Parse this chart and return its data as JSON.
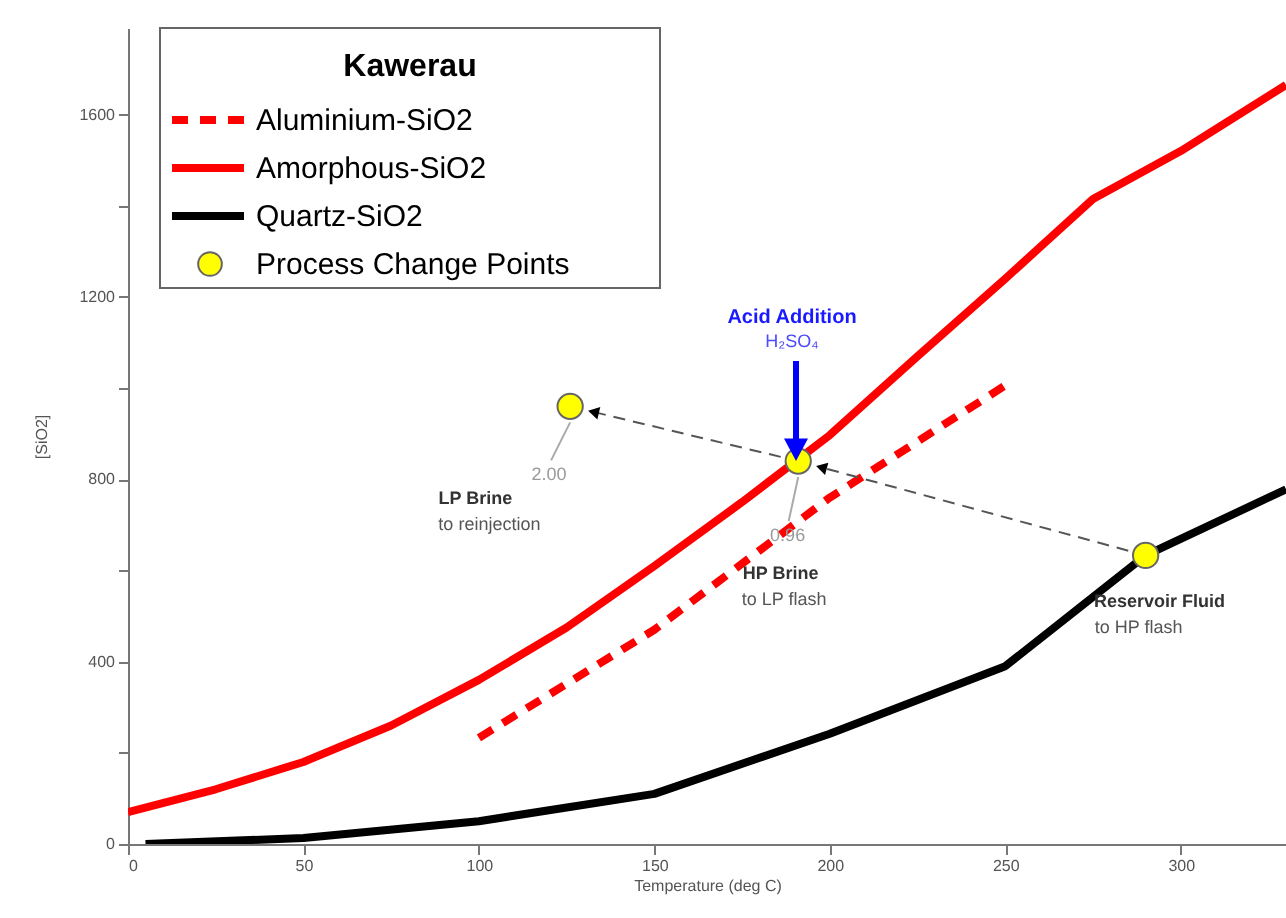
{
  "chart_data": {
    "type": "line",
    "xlabel": "Temperature (deg C)",
    "ylabel": "[SiO2]",
    "legend_title": "Kawerau",
    "legend": "top left",
    "grid": false,
    "xlim": [
      0,
      330
    ],
    "ylim": [
      0,
      1790
    ],
    "xticks": [
      0,
      50,
      100,
      150,
      200,
      250,
      300
    ],
    "yticks": [
      0,
      {
        "value": 200,
        "label": null
      },
      400,
      {
        "value": 600,
        "label": null
      },
      800,
      {
        "value": 1000,
        "label": null
      },
      1200,
      {
        "value": 1400,
        "label": null
      },
      1600
    ],
    "series": [
      {
        "name": "Aluminium-SiO2",
        "color": "#ff0000",
        "line_style": "dashed",
        "x": [
          100,
          150,
          200,
          250
        ],
        "values": [
          233,
          470,
          760,
          1006
        ]
      },
      {
        "name": "Amorphous-SiO2",
        "color": "#ff0000",
        "line_style": "solid",
        "x": [
          0,
          25,
          50,
          75,
          100,
          125,
          150,
          175,
          200,
          225,
          250,
          275,
          300,
          330
        ],
        "values": [
          70,
          120,
          180,
          260,
          360,
          475,
          610,
          750,
          897,
          1070,
          1240,
          1415,
          1520,
          1665
        ]
      },
      {
        "name": "Quartz-SiO2",
        "color": "#000000",
        "line_style": "solid",
        "x": [
          5,
          50,
          100,
          150,
          200,
          250,
          290,
          330
        ],
        "values": [
          0,
          13,
          50,
          110,
          242,
          390,
          633,
          778
        ]
      },
      {
        "name": "Process Change Points",
        "type": "scatter",
        "marker": "circle",
        "color": "#ffff00",
        "x": [
          126,
          191,
          290
        ],
        "values": [
          960,
          840,
          633
        ]
      }
    ],
    "annotations": [
      "Acid Addition",
      "H₂SO₄",
      {
        "text": "2.00",
        "x": 126,
        "y": 960
      },
      "LP Brine",
      "to reinjection",
      {
        "text": "0.96",
        "x": 191,
        "y": 840
      },
      "HP Brine",
      "to LP flash",
      "Reservoir Fluid",
      "to HP flash"
    ]
  }
}
